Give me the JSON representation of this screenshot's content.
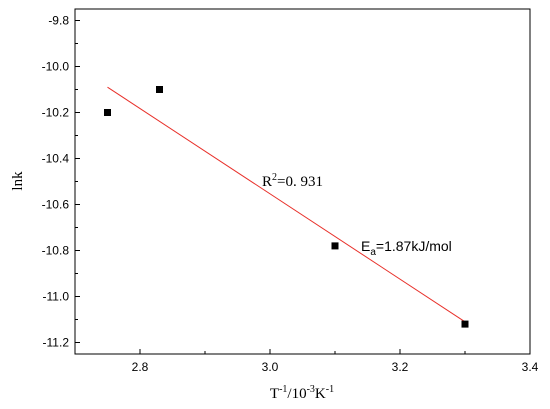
{
  "chart_data": {
    "type": "scatter",
    "title": "",
    "xlabel": {
      "base": "T",
      "sup1": "-1",
      "mid": "/10",
      "sup2": "-3",
      "unit": "K",
      "sup3": "-1"
    },
    "ylabel": "lnk",
    "xlim": [
      2.7,
      3.4
    ],
    "ylim": [
      -11.25,
      -9.75
    ],
    "xticks": [
      "2.8",
      "3.0",
      "3.2",
      "3.4"
    ],
    "yticks": [
      "-9.8",
      "-10.0",
      "-10.2",
      "-10.4",
      "-10.6",
      "-10.8",
      "-11.0",
      "-11.2"
    ],
    "grid": false,
    "series": [
      {
        "marker": "square",
        "color": "#000000",
        "x": [
          2.75,
          2.83,
          3.1,
          3.3
        ],
        "y": [
          -10.2,
          -10.1,
          -10.78,
          -11.12
        ]
      }
    ],
    "fit_line": {
      "color": "#e8302a",
      "x": [
        2.75,
        3.3
      ],
      "y": [
        -10.09,
        -11.11
      ]
    },
    "annotations": {
      "r2": {
        "prefix": "R",
        "sup": "2",
        "text": "=0. 931"
      },
      "ea": {
        "prefix": "E",
        "sub": "a",
        "text": "=1.87kJ/mol"
      }
    }
  }
}
